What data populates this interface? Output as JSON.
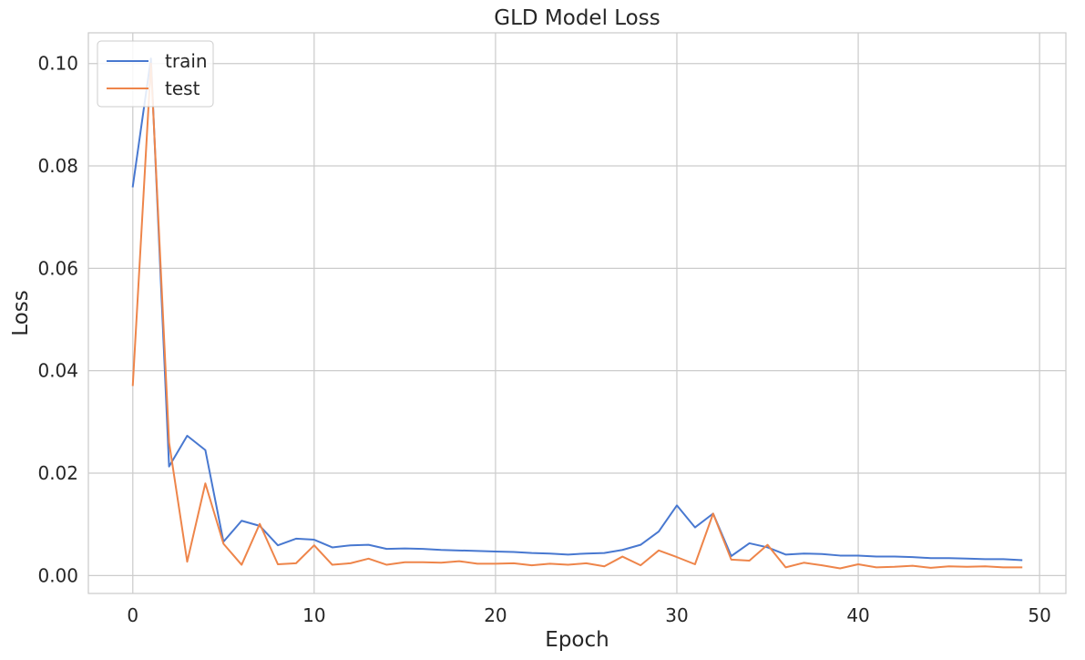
{
  "chart_data": {
    "type": "line",
    "title": "GLD Model Loss",
    "xlabel": "Epoch",
    "ylabel": "Loss",
    "xlim": [
      -2.45,
      51.45
    ],
    "ylim": [
      -0.0035,
      0.106
    ],
    "xticks": [
      0,
      10,
      20,
      30,
      40,
      50
    ],
    "yticks": [
      0.0,
      0.02,
      0.04,
      0.06,
      0.08,
      0.1
    ],
    "xtick_labels": [
      "0",
      "10",
      "20",
      "30",
      "40",
      "50"
    ],
    "ytick_labels": [
      "0.00",
      "0.02",
      "0.04",
      "0.06",
      "0.08",
      "0.10"
    ],
    "grid": true,
    "legend_position": "top-left",
    "x": [
      0,
      1,
      2,
      3,
      4,
      5,
      6,
      7,
      8,
      9,
      10,
      11,
      12,
      13,
      14,
      15,
      16,
      17,
      18,
      19,
      20,
      21,
      22,
      23,
      24,
      25,
      26,
      27,
      28,
      29,
      30,
      31,
      32,
      33,
      34,
      35,
      36,
      37,
      38,
      39,
      40,
      41,
      42,
      43,
      44,
      45,
      46,
      47,
      48,
      49
    ],
    "series": [
      {
        "name": "train",
        "color": "#4878d0",
        "values": [
          0.076,
          0.101,
          0.0213,
          0.0273,
          0.0245,
          0.0066,
          0.0107,
          0.0097,
          0.0059,
          0.0072,
          0.007,
          0.0055,
          0.0059,
          0.006,
          0.0052,
          0.0053,
          0.0052,
          0.005,
          0.0049,
          0.0048,
          0.0047,
          0.0046,
          0.0044,
          0.0043,
          0.0041,
          0.0043,
          0.0044,
          0.005,
          0.006,
          0.0086,
          0.0137,
          0.0094,
          0.0121,
          0.0038,
          0.0063,
          0.0055,
          0.0041,
          0.0043,
          0.0042,
          0.0039,
          0.0039,
          0.0037,
          0.0037,
          0.0036,
          0.0034,
          0.0034,
          0.0033,
          0.0032,
          0.0032,
          0.003
        ]
      },
      {
        "name": "test",
        "color": "#ee854a",
        "values": [
          0.0372,
          0.1,
          0.026,
          0.0027,
          0.018,
          0.0062,
          0.0021,
          0.0101,
          0.0022,
          0.0024,
          0.0059,
          0.0021,
          0.0024,
          0.0033,
          0.0021,
          0.0026,
          0.0026,
          0.0025,
          0.0028,
          0.0023,
          0.0023,
          0.0024,
          0.002,
          0.0023,
          0.0021,
          0.0024,
          0.0018,
          0.0037,
          0.002,
          0.0049,
          0.0036,
          0.0022,
          0.0121,
          0.0031,
          0.0029,
          0.006,
          0.0016,
          0.0025,
          0.002,
          0.0014,
          0.0022,
          0.0016,
          0.0017,
          0.0019,
          0.0015,
          0.0018,
          0.0017,
          0.0018,
          0.0016,
          0.0016
        ]
      }
    ]
  }
}
